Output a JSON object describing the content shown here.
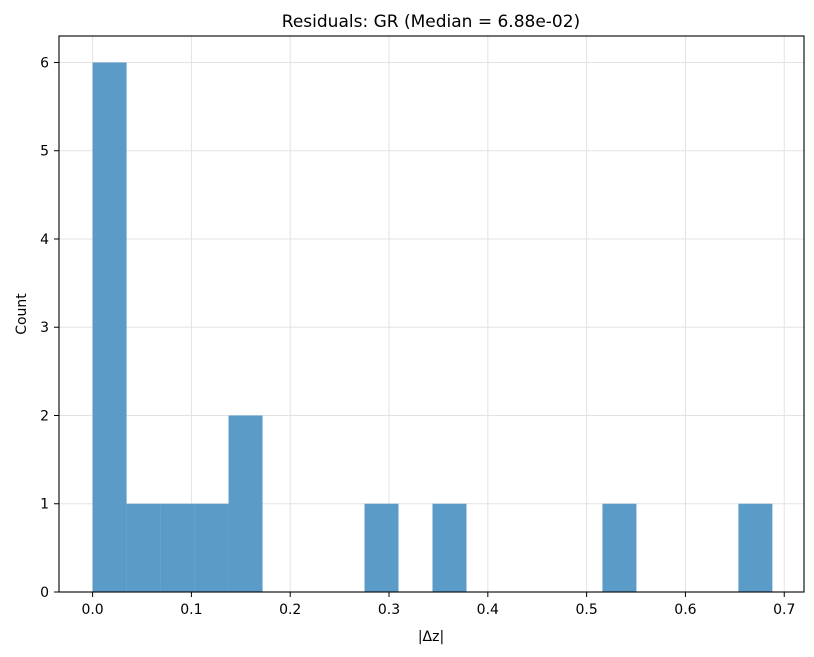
{
  "chart_data": {
    "type": "bar",
    "title": "Residuals: GR (Median = 6.88e-02)",
    "xlabel": "|Δz|",
    "ylabel": "Count",
    "xlim": [
      -0.034,
      0.72
    ],
    "ylim": [
      0,
      6.3
    ],
    "grid": true,
    "bar_color": "#5b9bc8",
    "bins": [
      {
        "x0": 0.0,
        "x1": 0.0344,
        "count": 6
      },
      {
        "x0": 0.0344,
        "x1": 0.0688,
        "count": 1
      },
      {
        "x0": 0.0688,
        "x1": 0.1032,
        "count": 1
      },
      {
        "x0": 0.1032,
        "x1": 0.1376,
        "count": 1
      },
      {
        "x0": 0.1376,
        "x1": 0.172,
        "count": 2
      },
      {
        "x0": 0.172,
        "x1": 0.2064,
        "count": 0
      },
      {
        "x0": 0.2064,
        "x1": 0.2408,
        "count": 0
      },
      {
        "x0": 0.2408,
        "x1": 0.2752,
        "count": 0
      },
      {
        "x0": 0.2752,
        "x1": 0.3096,
        "count": 1
      },
      {
        "x0": 0.3096,
        "x1": 0.344,
        "count": 0
      },
      {
        "x0": 0.344,
        "x1": 0.3784,
        "count": 1
      },
      {
        "x0": 0.3784,
        "x1": 0.4128,
        "count": 0
      },
      {
        "x0": 0.4128,
        "x1": 0.4472,
        "count": 0
      },
      {
        "x0": 0.4472,
        "x1": 0.4816,
        "count": 0
      },
      {
        "x0": 0.4816,
        "x1": 0.516,
        "count": 0
      },
      {
        "x0": 0.516,
        "x1": 0.5504,
        "count": 1
      },
      {
        "x0": 0.5504,
        "x1": 0.5848,
        "count": 0
      },
      {
        "x0": 0.5848,
        "x1": 0.6192,
        "count": 0
      },
      {
        "x0": 0.6192,
        "x1": 0.6536,
        "count": 0
      },
      {
        "x0": 0.6536,
        "x1": 0.688,
        "count": 1
      }
    ],
    "xticks": [
      {
        "value": 0.0,
        "label": "0.0"
      },
      {
        "value": 0.1,
        "label": "0.1"
      },
      {
        "value": 0.2,
        "label": "0.2"
      },
      {
        "value": 0.3,
        "label": "0.3"
      },
      {
        "value": 0.4,
        "label": "0.4"
      },
      {
        "value": 0.5,
        "label": "0.5"
      },
      {
        "value": 0.6,
        "label": "0.6"
      },
      {
        "value": 0.7,
        "label": "0.7"
      }
    ],
    "yticks": [
      {
        "value": 0,
        "label": "0"
      },
      {
        "value": 1,
        "label": "1"
      },
      {
        "value": 2,
        "label": "2"
      },
      {
        "value": 3,
        "label": "3"
      },
      {
        "value": 4,
        "label": "4"
      },
      {
        "value": 5,
        "label": "5"
      },
      {
        "value": 6,
        "label": "6"
      }
    ]
  }
}
